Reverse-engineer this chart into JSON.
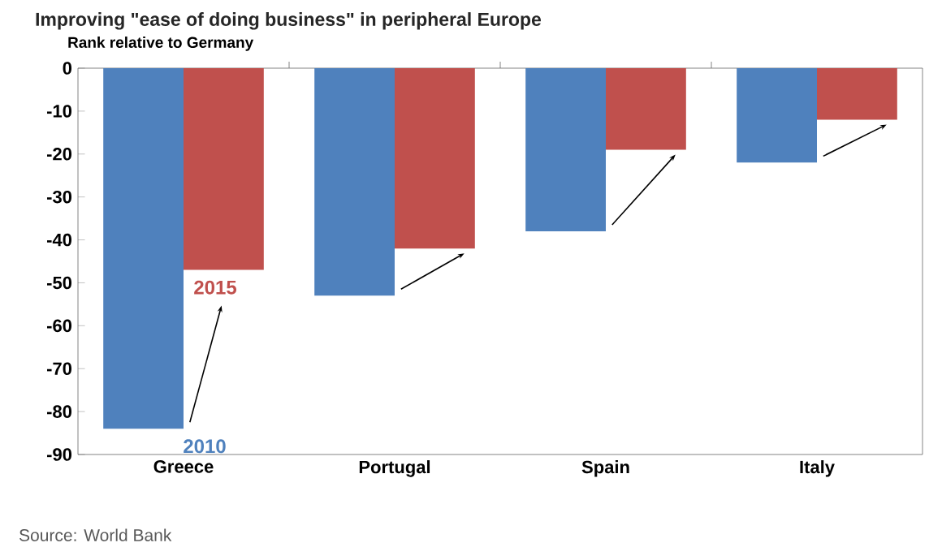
{
  "chart_data": {
    "type": "bar",
    "title": "Improving \"ease of doing business\" in peripheral Europe",
    "subtitle": "Rank relative to Germany",
    "categories": [
      "Greece",
      "Portugal",
      "Spain",
      "Italy"
    ],
    "series": [
      {
        "name": "2010",
        "color": "#4f81bd",
        "values": [
          -84,
          -53,
          -38,
          -22
        ]
      },
      {
        "name": "2015",
        "color": "#c0504d",
        "values": [
          -47,
          -42,
          -19,
          -12
        ]
      }
    ],
    "ylim": [
      -90,
      0
    ],
    "yticks": [
      -90,
      -80,
      -70,
      -60,
      -50,
      -40,
      -30,
      -20,
      -10,
      0
    ],
    "grid": false,
    "annotations": [
      "Source: World Bank"
    ]
  }
}
